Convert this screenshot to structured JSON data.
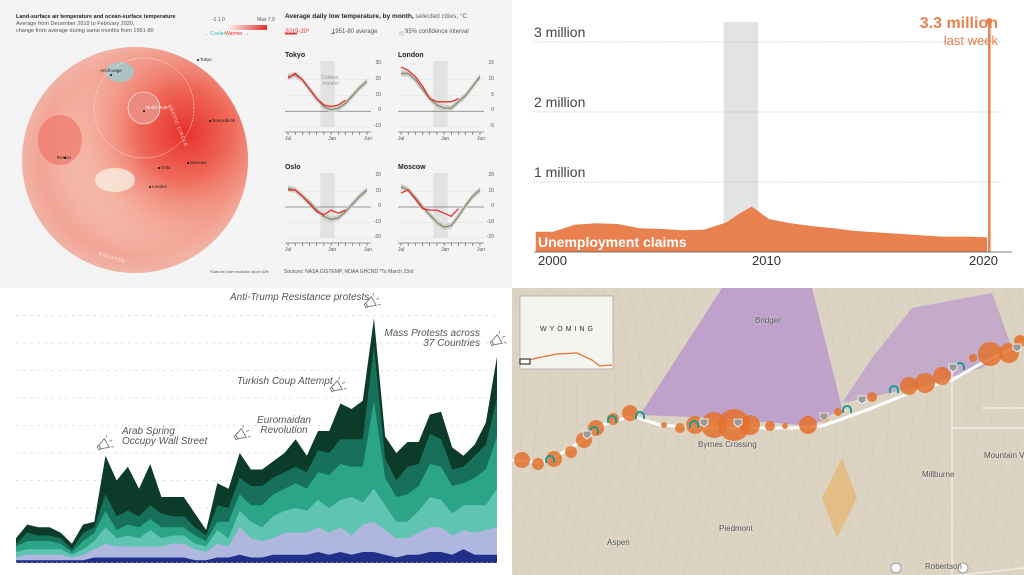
{
  "colors": {
    "warm": "#e8302b",
    "cool": "#8fd3da",
    "avg": "#8a8a7a",
    "claims": "#e8804f",
    "recession": "#e3e3e3",
    "stack": [
      "#1f2f8a",
      "#b0b7de",
      "#60c4b2",
      "#2ba488",
      "#17705a",
      "#0c3b2a"
    ],
    "route_circle": "#e3712e",
    "teal_arch": "#1e9a96",
    "purple": "#a57ad3",
    "orange_trace": "#e8a94a"
  },
  "chart_data": [
    {
      "type": "map-and-line",
      "panel": "arctic-temperature",
      "map": {
        "title": "Land-surface air temperature and ocean-surface temperature",
        "subtitle_1": "Average from December 2019 to February 2020,",
        "subtitle_2": "change from average during same months from 1951-80",
        "legend_min": "-1.1 0",
        "legend_max": "Max 7.9",
        "legend_cool": "← Cooler",
        "legend_warm": "Warmer →",
        "cities": [
          "Anchorage",
          "Tokyo",
          "North Pole*",
          "Novosibirsk",
          "Boston",
          "Oslo",
          "Moscow",
          "London"
        ],
        "arc_labels": [
          "ARCTIC CIRCLE",
          "EQUATOR"
        ],
        "footnote": "*Data are lower resolution above 82%"
      },
      "lines": {
        "title": "Average daily low temperature, by month,",
        "title_suffix": " selected cities, °C",
        "legend": [
          "2019-20*",
          "1951-80 average",
          "95% confidence interval"
        ],
        "months": [
          "Jul",
          "Jan",
          "Jun"
        ],
        "coldest_label_1": "Coldest",
        "coldest_label_2": "months",
        "cities": [
          {
            "name": "Tokyo",
            "ylim": [
              -10,
              30
            ],
            "ticks": [
              "30",
              "20",
              "10",
              "0",
              "-10"
            ],
            "current": [
              21,
              24,
              20,
              14,
              8,
              4,
              3,
              4,
              7
            ],
            "average": [
              22,
              23,
              20,
              14,
              8,
              3,
              1,
              2,
              5,
              10,
              15,
              19
            ]
          },
          {
            "name": "London",
            "ylim": [
              -5,
              15
            ],
            "ticks": [
              "15",
              "10",
              "5",
              "0",
              "-5"
            ],
            "current": [
              14,
              13,
              11,
              8,
              4,
              3,
              3,
              3,
              4
            ],
            "average": [
              12,
              12,
              10,
              7,
              4,
              2,
              1,
              1,
              3,
              5,
              8,
              11
            ]
          },
          {
            "name": "Oslo",
            "ylim": [
              -20,
              20
            ],
            "ticks": [
              "20",
              "10",
              "0",
              "-10",
              "-20"
            ],
            "current": [
              11,
              11,
              7,
              2,
              -3,
              -5,
              -2,
              -4,
              -2
            ],
            "average": [
              12,
              11,
              7,
              3,
              -2,
              -6,
              -8,
              -7,
              -3,
              2,
              7,
              11
            ]
          },
          {
            "name": "Moscow",
            "ylim": [
              -20,
              20
            ],
            "ticks": [
              "20",
              "10",
              "0",
              "-10",
              "-20"
            ],
            "current": [
              9,
              11,
              5,
              -1,
              -2,
              -2,
              -4,
              -6,
              -1
            ],
            "average": [
              13,
              11,
              6,
              0,
              -5,
              -10,
              -13,
              -12,
              -6,
              1,
              7,
              11
            ]
          }
        ],
        "source": "Sources: NASA GISTEMP, NOAA GHCND *To March 23rd"
      }
    },
    {
      "type": "area",
      "panel": "unemployment-claims",
      "series_label": "Unemployment claims",
      "ylim": [
        0,
        3300000
      ],
      "yticks": [
        "1 million",
        "2 million",
        "3 million"
      ],
      "xticks": [
        "2000",
        "2010",
        "2020"
      ],
      "recession": [
        2007.9,
        2009.5
      ],
      "x": [
        1999.2,
        2000,
        2001,
        2002,
        2003,
        2004,
        2005,
        2006,
        2007,
        2008,
        2008.7,
        2009.2,
        2010,
        2011,
        2012,
        2013,
        2014,
        2015,
        2016,
        2017,
        2018,
        2019,
        2020.1,
        2020.2
      ],
      "values": [
        290000,
        290000,
        390000,
        410000,
        400000,
        340000,
        330000,
        310000,
        320000,
        420000,
        560000,
        650000,
        470000,
        410000,
        370000,
        340000,
        300000,
        280000,
        260000,
        240000,
        220000,
        220000,
        210000,
        3300000
      ],
      "annotation_value": "3.3 million",
      "annotation_label": "last week"
    },
    {
      "type": "area",
      "stacked": true,
      "panel": "protests",
      "grid": true,
      "ylim": [
        0,
        9.5
      ],
      "annotations": [
        "Anti-Trump Resistance protests",
        "Mass Protests across",
        "37 Countries",
        "Turkish Coup Attempt",
        "Euromaidan",
        "Revolution",
        "Arab Spring",
        "Occupy Wall Street"
      ],
      "series": [
        {
          "values": [
            0.1,
            0.1,
            0.1,
            0.1,
            0.1,
            0.1,
            0.1,
            0.2,
            0.2,
            0.2,
            0.2,
            0.2,
            0.2,
            0.2,
            0.2,
            0.2,
            0.1,
            0.1,
            0.2,
            0.2,
            0.3,
            0.2,
            0.2,
            0.3,
            0.3,
            0.3,
            0.3,
            0.4,
            0.3,
            0.4,
            0.3,
            0.4,
            0.4,
            0.3,
            0.2,
            0.3,
            0.3,
            0.4,
            0.4,
            0.3,
            0.5,
            0.3,
            0.3,
            0.3
          ]
        },
        {
          "values": [
            0.1,
            0.2,
            0.2,
            0.2,
            0.2,
            0.1,
            0.2,
            0.3,
            0.5,
            0.4,
            0.4,
            0.4,
            0.4,
            0.4,
            0.5,
            0.5,
            0.4,
            0.3,
            0.5,
            0.4,
            1.0,
            0.7,
            0.6,
            0.6,
            0.8,
            0.8,
            0.8,
            0.9,
            0.8,
            0.9,
            0.7,
            1.0,
            1.1,
            0.9,
            0.7,
            0.6,
            0.8,
            0.9,
            0.9,
            0.7,
            0.7,
            0.8,
            0.9,
            1.0
          ]
        },
        {
          "values": [
            0.2,
            0.2,
            0.2,
            0.2,
            0.2,
            0.1,
            0.2,
            0.3,
            0.6,
            0.3,
            0.4,
            0.3,
            0.6,
            0.3,
            0.3,
            0.3,
            0.2,
            0.2,
            0.5,
            0.3,
            0.6,
            0.6,
            0.5,
            0.8,
            0.8,
            0.9,
            0.8,
            1.0,
            0.9,
            1.0,
            1.4,
            0.8,
            1.2,
            0.9,
            0.6,
            0.6,
            0.8,
            1.1,
            1.0,
            0.8,
            0.9,
            1.0,
            0.9,
            1.4
          ]
        },
        {
          "values": [
            0.2,
            0.3,
            0.3,
            0.3,
            0.2,
            0.1,
            0.3,
            0.3,
            0.6,
            0.3,
            0.4,
            0.4,
            0.4,
            0.4,
            0.3,
            0.3,
            0.3,
            0.2,
            0.3,
            0.6,
            0.6,
            0.6,
            0.8,
            0.8,
            0.8,
            0.9,
            0.8,
            1.0,
            1.2,
            1.3,
            1.1,
            1.3,
            3.2,
            1.0,
            0.9,
            1.0,
            0.9,
            1.2,
            1.2,
            1.0,
            0.8,
            1.0,
            1.3,
            1.9
          ]
        },
        {
          "values": [
            0.1,
            0.3,
            0.2,
            0.2,
            0.2,
            0.1,
            0.3,
            0.2,
            0.6,
            0.5,
            0.5,
            0.4,
            0.5,
            0.5,
            0.4,
            0.4,
            0.3,
            0.2,
            0.6,
            0.5,
            0.6,
            0.7,
            0.7,
            0.6,
            0.6,
            0.6,
            0.6,
            0.8,
            0.8,
            0.9,
            1.0,
            1.0,
            2.0,
            0.7,
            0.6,
            1.0,
            0.8,
            1.1,
            1.0,
            0.6,
            0.6,
            0.8,
            0.9,
            1.4
          ]
        },
        {
          "values": [
            0.2,
            0.3,
            0.3,
            0.3,
            0.2,
            0.2,
            0.3,
            0.2,
            1.4,
            1.3,
            1.6,
            1.0,
            1.5,
            0.6,
            0.7,
            0.7,
            0.5,
            0.2,
            0.8,
            0.7,
            0.9,
            0.6,
            0.6,
            0.6,
            0.7,
            1.0,
            0.6,
            0.7,
            0.8,
            1.3,
            1.1,
            1.4,
            1.0,
            0.8,
            1.0,
            0.9,
            0.8,
            0.7,
            1.0,
            0.8,
            0.4,
            0.4,
            0.8,
            1.5
          ]
        }
      ]
    },
    {
      "type": "map",
      "panel": "wyoming-route",
      "inset_label": "WYOMING",
      "labels": [
        "Bridger",
        "Byrnes Crossing",
        "Mountain V",
        "Millburne",
        "Piedmont",
        "Aspen",
        "Robertson"
      ],
      "shield_interstate": "80",
      "shield_state": "410"
    }
  ]
}
